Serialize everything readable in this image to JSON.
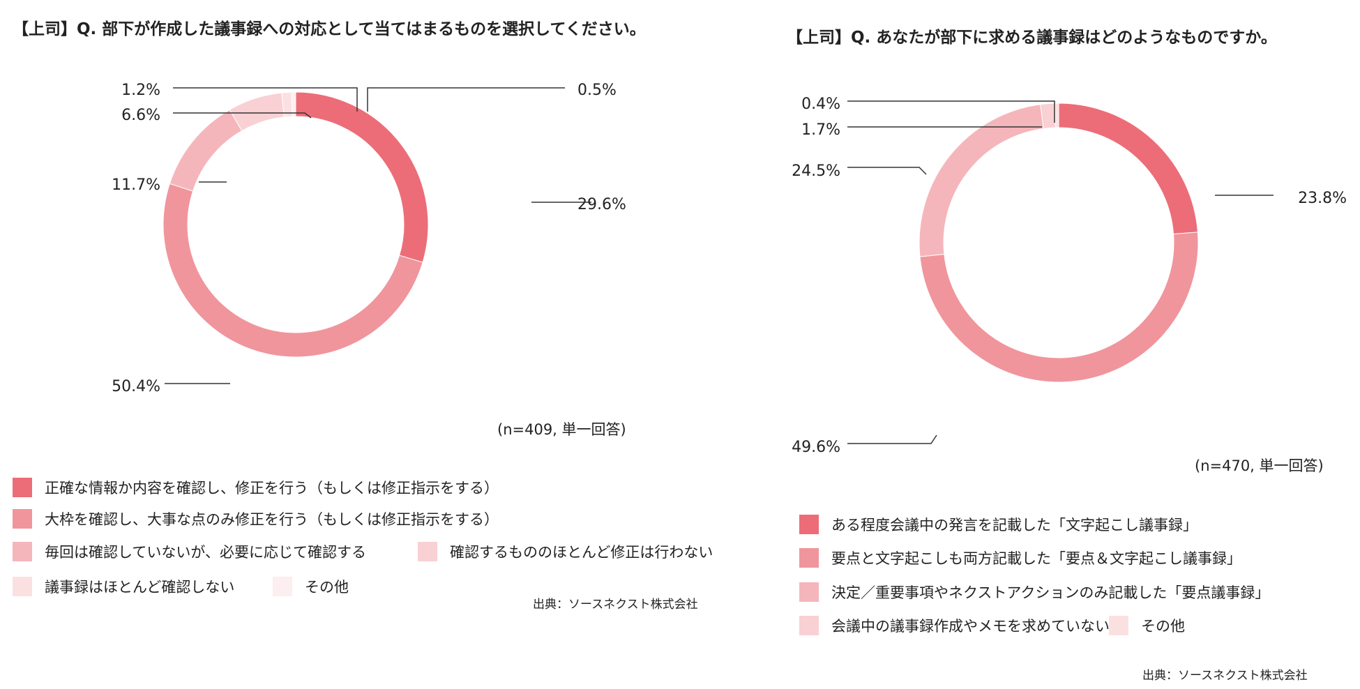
{
  "left": {
    "title": "【上司】Q. 部下が作成した議事録への対応として当てはまるものを選択してください。",
    "note": "(n=409, 単一回答)",
    "source": "出典：ソースネクスト株式会社",
    "legend": [
      {
        "label": "正確な情報か内容を確認し、修正を行う（もしくは修正指示をする）",
        "color": "#ec6d78"
      },
      {
        "label": "大枠を確認し、大事な点のみ修正を行う（もしくは修正指示をする）",
        "color": "#f0959c"
      },
      {
        "label": "毎回は確認していないが、必要に応じて確認する",
        "color": "#f5b6bb"
      },
      {
        "label": "確認するもののほとんど修正は行わない",
        "color": "#f9d0d3"
      },
      {
        "label": "議事録はほとんど確認しない",
        "color": "#fbe0e2"
      },
      {
        "label": "その他",
        "color": "#fdeef0"
      }
    ]
  },
  "right": {
    "title": "【上司】Q. あなたが部下に求める議事録はどのようなものですか。",
    "note": "(n=470, 単一回答)",
    "source": "出典：ソースネクスト株式会社",
    "legend": [
      {
        "label": "ある程度会議中の発言を記載した「文字起こし議事録」",
        "color": "#ec6d78"
      },
      {
        "label": "要点と文字起こしも両方記載した「要点＆文字起こし議事録」",
        "color": "#f0959c"
      },
      {
        "label": "決定／重要事項やネクストアクションのみ記載した「要点議事録」",
        "color": "#f5b6bb"
      },
      {
        "label": "会議中の議事録作成やメモを求めていない",
        "color": "#f9d0d3"
      },
      {
        "label": "その他",
        "color": "#fbe0e2"
      }
    ]
  },
  "chart_data": [
    {
      "type": "pie",
      "title": "【上司】Q. 部下が作成した議事録への対応として当てはまるものを選択してください。",
      "categories": [
        "正確な情報か内容を確認し、修正を行う（もしくは修正指示をする）",
        "大枠を確認し、大事な点のみ修正を行う（もしくは修正指示をする）",
        "毎回は確認していないが、必要に応じて確認する",
        "確認するもののほとんど修正は行わない",
        "議事録はほとんど確認しない",
        "その他"
      ],
      "values": [
        29.6,
        50.4,
        11.7,
        6.6,
        1.2,
        0.5
      ],
      "labels": [
        "29.6%",
        "50.4%",
        "11.7%",
        "6.6%",
        "1.2%",
        "0.5%"
      ],
      "colors": [
        "#ec6d78",
        "#f0959c",
        "#f5b6bb",
        "#f9d0d3",
        "#fbe0e2",
        "#fdeef0"
      ],
      "legend_position": "bottom"
    },
    {
      "type": "pie",
      "title": "【上司】Q. あなたが部下に求める議事録はどのようなものですか。",
      "categories": [
        "ある程度会議中の発言を記載した「文字起こし議事録」",
        "要点と文字起こしも両方記載した「要点＆文字起こし議事録」",
        "決定／重要事項やネクストアクションのみ記載した「要点議事録」",
        "会議中の議事録作成やメモを求めていない",
        "その他"
      ],
      "values": [
        23.8,
        49.6,
        24.5,
        1.7,
        0.4
      ],
      "labels": [
        "23.8%",
        "49.6%",
        "24.5%",
        "1.7%",
        "0.4%"
      ],
      "colors": [
        "#ec6d78",
        "#f0959c",
        "#f5b6bb",
        "#f9d0d3",
        "#fbe0e2"
      ],
      "legend_position": "bottom"
    }
  ]
}
